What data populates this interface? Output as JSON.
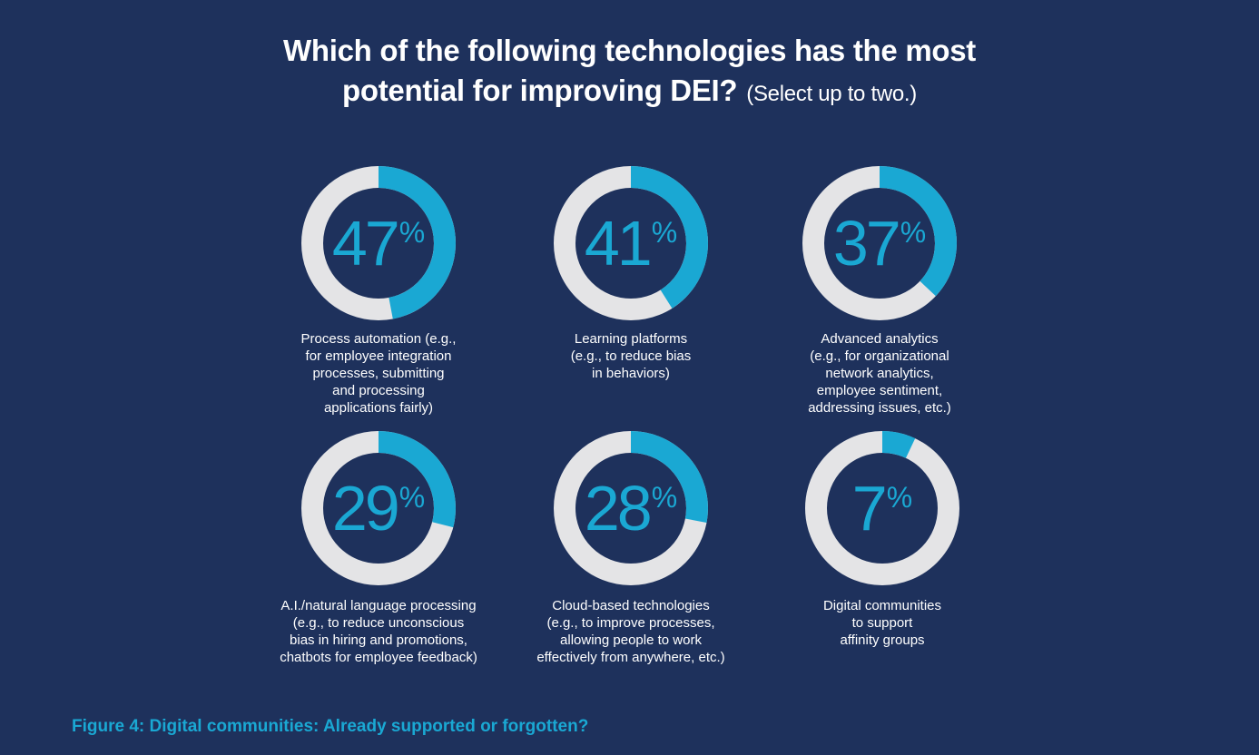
{
  "title": {
    "line1": "Which of the following technologies has the most",
    "line2": "potential for improving DEI?",
    "note": "(Select up to two.)"
  },
  "caption": "Figure 4: Digital communities: Already supported or forgotten?",
  "colors": {
    "background": "#1e315c",
    "accent": "#1aa8d3",
    "track": "#e4e4e6"
  },
  "chart_data": {
    "type": "pie",
    "title": "Which of the following technologies has the most potential for improving DEI? (Select up to two.)",
    "unit": "%",
    "items": [
      {
        "value": 47,
        "percent_label": "47",
        "percent_sign": "%",
        "label": "Process automation (e.g., for employee integration processes, submitting and processing applications fairly)",
        "label_lines": [
          "Process automation (e.g.,",
          "for employee integration",
          "processes, submitting",
          "and processing",
          "applications fairly)"
        ]
      },
      {
        "value": 41,
        "percent_label": "41",
        "percent_sign": "%",
        "label": "Learning platforms (e.g., to reduce bias in behaviors)",
        "label_lines": [
          "Learning platforms",
          "(e.g., to reduce bias",
          "in behaviors)"
        ]
      },
      {
        "value": 37,
        "percent_label": "37",
        "percent_sign": "%",
        "label": "Advanced analytics (e.g., for organizational network analytics, employee sentiment, addressing issues, etc.)",
        "label_lines": [
          "Advanced analytics",
          "(e.g., for organizational",
          "network analytics,",
          "employee sentiment,",
          "addressing issues, etc.)"
        ]
      },
      {
        "value": 29,
        "percent_label": "29",
        "percent_sign": "%",
        "label": "A.I./natural language processing (e.g., to reduce unconscious bias in hiring and promotions, chatbots for employee feedback)",
        "label_lines": [
          "A.I./natural language processing",
          "(e.g., to reduce unconscious",
          "bias in hiring and promotions,",
          "chatbots for employee feedback)"
        ]
      },
      {
        "value": 28,
        "percent_label": "28",
        "percent_sign": "%",
        "label": "Cloud-based technologies (e.g., to improve processes, allowing people to work effectively from anywhere, etc.)",
        "label_lines": [
          "Cloud-based technologies",
          "(e.g., to improve processes,",
          "allowing people to work",
          "effectively from anywhere, etc.)"
        ]
      },
      {
        "value": 7,
        "percent_label": "7",
        "percent_sign": "%",
        "label": "Digital communities to support affinity groups",
        "label_lines": [
          "Digital communities",
          "to support",
          "affinity groups"
        ]
      }
    ]
  }
}
